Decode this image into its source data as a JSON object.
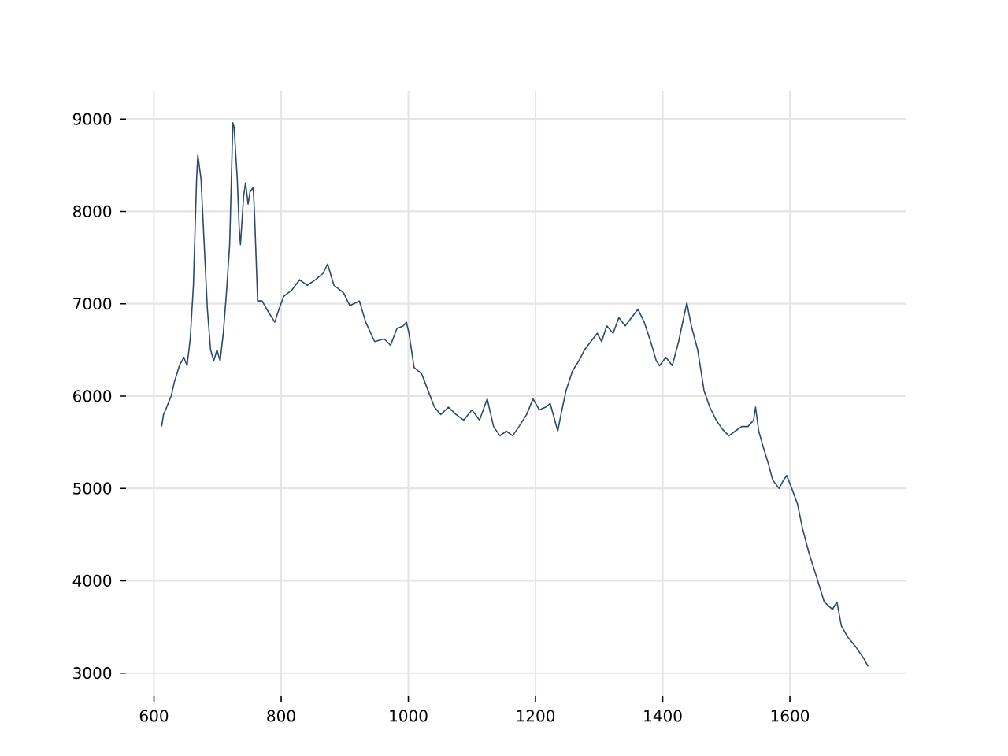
{
  "chart_data": {
    "type": "line",
    "color": "#2d4a6b",
    "grid": true,
    "x": [
      612,
      615,
      620,
      627,
      632,
      640,
      647,
      652,
      657,
      662,
      667,
      669,
      674,
      679,
      684,
      689,
      694,
      699,
      704,
      709,
      714,
      719,
      724,
      726,
      731,
      734,
      736,
      741,
      744,
      748,
      751,
      756,
      758,
      763,
      770,
      780,
      790,
      795,
      804,
      817,
      829,
      841,
      854,
      866,
      873,
      883,
      898,
      908,
      923,
      933,
      947,
      962,
      972,
      982,
      992,
      997,
      1001,
      1009,
      1021,
      1031,
      1041,
      1051,
      1063,
      1075,
      1087,
      1100,
      1112,
      1124,
      1134,
      1144,
      1154,
      1164,
      1174,
      1186,
      1196,
      1206,
      1216,
      1223,
      1235,
      1240,
      1248,
      1258,
      1268,
      1277,
      1287,
      1297,
      1304,
      1312,
      1322,
      1331,
      1341,
      1351,
      1361,
      1371,
      1381,
      1390,
      1395,
      1405,
      1415,
      1425,
      1433,
      1438,
      1445,
      1455,
      1465,
      1474,
      1484,
      1494,
      1504,
      1514,
      1524,
      1534,
      1543,
      1546,
      1551,
      1558,
      1566,
      1573,
      1583,
      1590,
      1595,
      1603,
      1612,
      1620,
      1630,
      1642,
      1654,
      1667,
      1674,
      1681,
      1691,
      1704,
      1716,
      1723
    ],
    "values": [
      5670,
      5800,
      5880,
      6000,
      6150,
      6330,
      6420,
      6330,
      6620,
      7200,
      8350,
      8610,
      8350,
      7640,
      6940,
      6500,
      6380,
      6500,
      6380,
      6680,
      7120,
      7640,
      8960,
      8910,
      8350,
      7820,
      7640,
      8170,
      8310,
      8080,
      8210,
      8260,
      8000,
      7030,
      7030,
      6910,
      6800,
      6910,
      7080,
      7150,
      7260,
      7200,
      7260,
      7330,
      7430,
      7200,
      7120,
      6980,
      7030,
      6800,
      6590,
      6620,
      6550,
      6730,
      6760,
      6800,
      6680,
      6310,
      6240,
      6060,
      5880,
      5800,
      5880,
      5800,
      5740,
      5850,
      5740,
      5970,
      5670,
      5570,
      5620,
      5570,
      5670,
      5800,
      5970,
      5850,
      5880,
      5920,
      5620,
      5800,
      6060,
      6270,
      6380,
      6500,
      6590,
      6680,
      6590,
      6760,
      6680,
      6850,
      6760,
      6850,
      6940,
      6800,
      6590,
      6380,
      6330,
      6420,
      6330,
      6590,
      6850,
      7010,
      6760,
      6500,
      6060,
      5880,
      5740,
      5640,
      5570,
      5620,
      5670,
      5670,
      5740,
      5880,
      5620,
      5450,
      5270,
      5090,
      5000,
      5090,
      5140,
      5000,
      4830,
      4560,
      4300,
      4040,
      3770,
      3690,
      3770,
      3510,
      3390,
      3280,
      3160,
      3070
    ],
    "xlim": [
      556,
      1782
    ],
    "ylim": [
      2750,
      9300
    ],
    "xticks": [
      600,
      800,
      1000,
      1200,
      1400,
      1600
    ],
    "yticks": [
      3000,
      4000,
      5000,
      6000,
      7000,
      8000,
      9000
    ]
  }
}
